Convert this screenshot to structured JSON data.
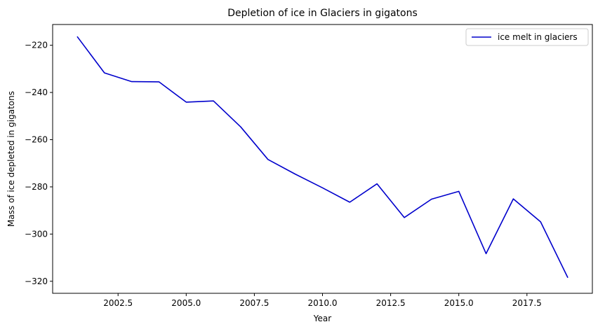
{
  "chart_data": {
    "type": "line",
    "title": "Depletion of ice in Glaciers in gigatons",
    "xlabel": "Year",
    "ylabel": "Mass of ice depleted in gigatons",
    "xlim": [
      2000.1,
      2019.9
    ],
    "ylim": [
      -325.1,
      -211.2
    ],
    "x_ticks": [
      2002.5,
      2005.0,
      2007.5,
      2010.0,
      2012.5,
      2015.0,
      2017.5
    ],
    "x_tick_labels": [
      "2002.5",
      "2005.0",
      "2007.5",
      "2010.0",
      "2012.5",
      "2015.0",
      "2017.5"
    ],
    "y_ticks": [
      -220,
      -240,
      -260,
      -280,
      -300,
      -320
    ],
    "y_tick_labels": [
      "−220",
      "−240",
      "−260",
      "−280",
      "−300",
      "−320"
    ],
    "grid": false,
    "legend_position": "top-right",
    "series": [
      {
        "name": "ice melt in glaciers",
        "color": "#0000cc",
        "x": [
          2001,
          2002,
          2003,
          2004,
          2005,
          2006,
          2007,
          2008,
          2009,
          2010,
          2011,
          2012,
          2013,
          2014,
          2015,
          2016,
          2017,
          2018,
          2019
        ],
        "y": [
          -216.3,
          -231.7,
          -235.4,
          -235.5,
          -244.1,
          -243.6,
          -254.6,
          -268.4,
          -274.6,
          -280.4,
          -286.5,
          -278.7,
          -293.0,
          -285.2,
          -281.9,
          -308.3,
          -285.1,
          -294.8,
          -318.5
        ]
      }
    ]
  }
}
